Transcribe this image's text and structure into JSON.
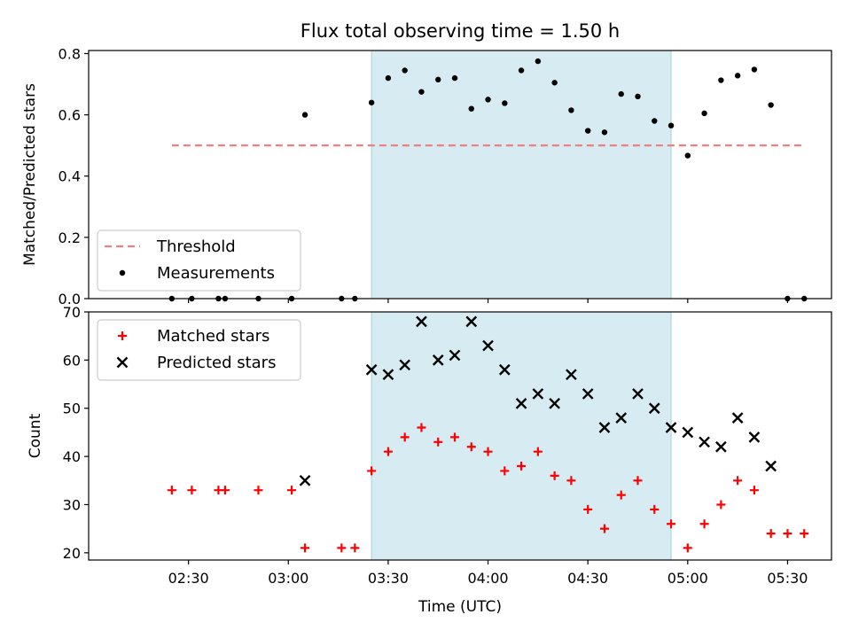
{
  "chart_data": {
    "title": "Flux total observing time = 1.50 h",
    "x_axis": {
      "label": "Time (UTC)",
      "unit": "minutes after 00:00 UTC",
      "range": [
        2.0,
        5.72
      ],
      "range_labels": [
        "02:00",
        "05:43"
      ],
      "ticks": [
        "02:30",
        "03:00",
        "03:30",
        "04:00",
        "04:30",
        "05:00",
        "05:30"
      ]
    },
    "highlight_span": {
      "start": "03:25",
      "end": "04:55",
      "color": "#add8e6"
    },
    "panels": [
      {
        "name": "ratio",
        "type": "scatter",
        "ylabel": "Matched/Predicted stars",
        "ylim": [
          0,
          0.81
        ],
        "yticks": [
          "0.0",
          "0.2",
          "0.4",
          "0.6",
          "0.8"
        ],
        "legend": {
          "placement": "lower-left",
          "entries": [
            {
              "label": "Threshold",
              "style": "dashed-line",
              "color": "#f08080"
            },
            {
              "label": "Measurements",
              "style": "dot",
              "color": "#000000"
            }
          ]
        },
        "threshold": {
          "y": 0.5,
          "x_start": "02:25",
          "x_end": "05:35",
          "color": "#f08080"
        },
        "series": [
          {
            "name": "Measurements",
            "color": "#000000",
            "points": [
              [
                "02:25",
                0
              ],
              [
                "02:31",
                0
              ],
              [
                "02:39",
                0
              ],
              [
                "02:41",
                0
              ],
              [
                "02:51",
                0
              ],
              [
                "03:01",
                0
              ],
              [
                "03:05",
                0.6
              ],
              [
                "03:16",
                0
              ],
              [
                "03:20",
                0
              ],
              [
                "03:25",
                0.64
              ],
              [
                "03:30",
                0.72
              ],
              [
                "03:35",
                0.745
              ],
              [
                "03:40",
                0.675
              ],
              [
                "03:45",
                0.715
              ],
              [
                "03:50",
                0.72
              ],
              [
                "03:55",
                0.62
              ],
              [
                "04:00",
                0.65
              ],
              [
                "04:05",
                0.638
              ],
              [
                "04:10",
                0.745
              ],
              [
                "04:15",
                0.775
              ],
              [
                "04:20",
                0.705
              ],
              [
                "04:25",
                0.615
              ],
              [
                "04:30",
                0.548
              ],
              [
                "04:35",
                0.543
              ],
              [
                "04:40",
                0.668
              ],
              [
                "04:45",
                0.66
              ],
              [
                "04:50",
                0.58
              ],
              [
                "04:55",
                0.565
              ],
              [
                "05:00",
                0.467
              ],
              [
                "05:05",
                0.605
              ],
              [
                "05:10",
                0.713
              ],
              [
                "05:15",
                0.728
              ],
              [
                "05:20",
                0.748
              ],
              [
                "05:25",
                0.632
              ],
              [
                "05:30",
                0
              ],
              [
                "05:35",
                0
              ]
            ]
          }
        ]
      },
      {
        "name": "counts",
        "type": "scatter",
        "ylabel": "Count",
        "ylim": [
          18.5,
          70
        ],
        "yticks": [
          "20",
          "30",
          "40",
          "50",
          "60",
          "70"
        ],
        "legend": {
          "placement": "upper-left",
          "entries": [
            {
              "label": "Matched stars",
              "style": "plus",
              "color": "#ff0000"
            },
            {
              "label": "Predicted stars",
              "style": "x",
              "color": "#000000"
            }
          ]
        },
        "series": [
          {
            "name": "Matched stars",
            "marker": "plus",
            "color": "#ff0000",
            "points": [
              [
                "02:25",
                33
              ],
              [
                "02:31",
                33
              ],
              [
                "02:39",
                33
              ],
              [
                "02:41",
                33
              ],
              [
                "02:51",
                33
              ],
              [
                "03:01",
                33
              ],
              [
                "03:05",
                21
              ],
              [
                "03:16",
                21
              ],
              [
                "03:20",
                21
              ],
              [
                "03:25",
                37
              ],
              [
                "03:30",
                41
              ],
              [
                "03:35",
                44
              ],
              [
                "03:40",
                46
              ],
              [
                "03:45",
                43
              ],
              [
                "03:50",
                44
              ],
              [
                "03:55",
                42
              ],
              [
                "04:00",
                41
              ],
              [
                "04:05",
                37
              ],
              [
                "04:10",
                38
              ],
              [
                "04:15",
                41
              ],
              [
                "04:20",
                36
              ],
              [
                "04:25",
                35
              ],
              [
                "04:30",
                29
              ],
              [
                "04:35",
                25
              ],
              [
                "04:40",
                32
              ],
              [
                "04:45",
                35
              ],
              [
                "04:50",
                29
              ],
              [
                "04:55",
                26
              ],
              [
                "05:00",
                21
              ],
              [
                "05:05",
                26
              ],
              [
                "05:10",
                30
              ],
              [
                "05:15",
                35
              ],
              [
                "05:20",
                33
              ],
              [
                "05:25",
                24
              ],
              [
                "05:30",
                24
              ],
              [
                "05:35",
                24
              ]
            ]
          },
          {
            "name": "Predicted stars",
            "marker": "x",
            "color": "#000000",
            "points": [
              [
                "03:05",
                35
              ],
              [
                "03:25",
                58
              ],
              [
                "03:30",
                57
              ],
              [
                "03:35",
                59
              ],
              [
                "03:40",
                68
              ],
              [
                "03:45",
                60
              ],
              [
                "03:50",
                61
              ],
              [
                "03:55",
                68
              ],
              [
                "04:00",
                63
              ],
              [
                "04:05",
                58
              ],
              [
                "04:10",
                51
              ],
              [
                "04:15",
                53
              ],
              [
                "04:20",
                51
              ],
              [
                "04:25",
                57
              ],
              [
                "04:30",
                53
              ],
              [
                "04:35",
                46
              ],
              [
                "04:40",
                48
              ],
              [
                "04:45",
                53
              ],
              [
                "04:50",
                50
              ],
              [
                "04:55",
                46
              ],
              [
                "05:00",
                45
              ],
              [
                "05:05",
                43
              ],
              [
                "05:10",
                42
              ],
              [
                "05:15",
                48
              ],
              [
                "05:20",
                44
              ],
              [
                "05:25",
                38
              ]
            ]
          }
        ]
      }
    ]
  }
}
